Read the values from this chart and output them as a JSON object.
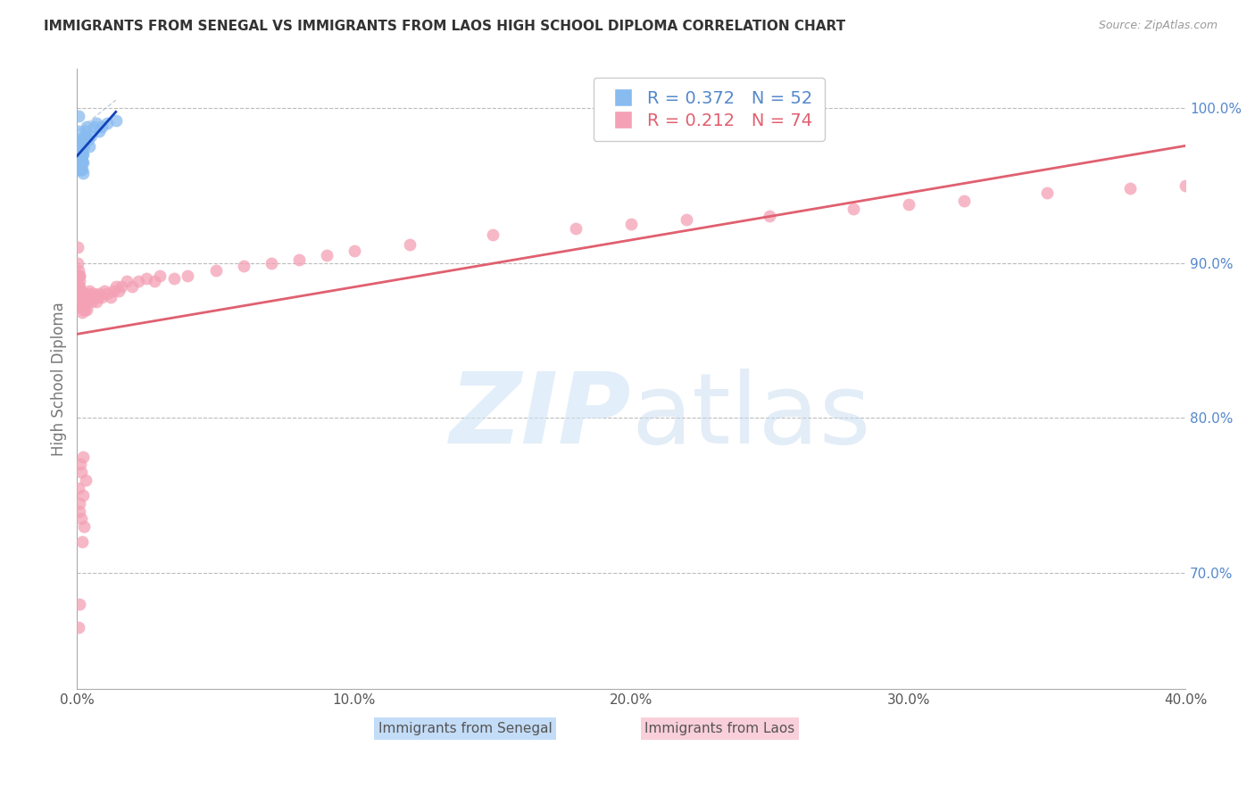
{
  "title": "IMMIGRANTS FROM SENEGAL VS IMMIGRANTS FROM LAOS HIGH SCHOOL DIPLOMA CORRELATION CHART",
  "source": "Source: ZipAtlas.com",
  "ylabel_left": "High School Diploma",
  "legend_senegal": "Immigrants from Senegal",
  "legend_laos": "Immigrants from Laos",
  "R_senegal": 0.372,
  "N_senegal": 52,
  "R_laos": 0.212,
  "N_laos": 74,
  "color_senegal": "#88BBF0",
  "color_laos": "#F4A0B5",
  "line_color_senegal": "#1144BB",
  "line_color_laos": "#E06070",
  "xlim": [
    0.0,
    0.4
  ],
  "ylim": [
    0.625,
    1.025
  ],
  "xticks": [
    0.0,
    0.1,
    0.2,
    0.3,
    0.4
  ],
  "yticks_right": [
    0.7,
    0.8,
    0.9,
    1.0
  ],
  "senegal_x": [
    0.0002,
    0.0004,
    0.0005,
    0.0005,
    0.0006,
    0.0006,
    0.0007,
    0.0007,
    0.0008,
    0.0008,
    0.0008,
    0.0009,
    0.0009,
    0.001,
    0.001,
    0.001,
    0.0011,
    0.0011,
    0.0012,
    0.0012,
    0.0013,
    0.0013,
    0.0013,
    0.0014,
    0.0014,
    0.0015,
    0.0015,
    0.0016,
    0.0016,
    0.0017,
    0.0017,
    0.0018,
    0.0018,
    0.0019,
    0.002,
    0.0021,
    0.0022,
    0.0023,
    0.0025,
    0.0027,
    0.003,
    0.0032,
    0.0035,
    0.004,
    0.0045,
    0.005,
    0.006,
    0.007,
    0.008,
    0.009,
    0.011,
    0.014
  ],
  "senegal_y": [
    0.98,
    0.975,
    0.968,
    0.985,
    0.978,
    0.972,
    0.995,
    0.975,
    0.97,
    0.965,
    0.96,
    0.97,
    0.965,
    0.968,
    0.975,
    0.96,
    0.97,
    0.965,
    0.972,
    0.968,
    0.975,
    0.972,
    0.965,
    0.968,
    0.975,
    0.965,
    0.96,
    0.968,
    0.975,
    0.97,
    0.965,
    0.96,
    0.975,
    0.97,
    0.965,
    0.958,
    0.97,
    0.978,
    0.975,
    0.98,
    0.985,
    0.982,
    0.988,
    0.98,
    0.975,
    0.982,
    0.988,
    0.99,
    0.985,
    0.988,
    0.99,
    0.992
  ],
  "laos_x": [
    0.0002,
    0.0003,
    0.0005,
    0.0006,
    0.0007,
    0.0008,
    0.0009,
    0.001,
    0.001,
    0.0011,
    0.0012,
    0.0013,
    0.0014,
    0.0015,
    0.0016,
    0.0017,
    0.0018,
    0.0019,
    0.002,
    0.0021,
    0.0022,
    0.0023,
    0.0024,
    0.0025,
    0.0026,
    0.0028,
    0.003,
    0.0032,
    0.0034,
    0.0036,
    0.0038,
    0.004,
    0.0045,
    0.005,
    0.0055,
    0.006,
    0.0065,
    0.007,
    0.0075,
    0.008,
    0.009,
    0.01,
    0.011,
    0.012,
    0.013,
    0.014,
    0.015,
    0.016,
    0.018,
    0.02,
    0.022,
    0.025,
    0.028,
    0.03,
    0.035,
    0.04,
    0.05,
    0.06,
    0.07,
    0.08,
    0.09,
    0.1,
    0.12,
    0.15,
    0.18,
    0.2,
    0.22,
    0.25,
    0.28,
    0.3,
    0.32,
    0.35,
    0.38,
    0.4
  ],
  "laos_y": [
    0.9,
    0.91,
    0.885,
    0.895,
    0.878,
    0.892,
    0.888,
    0.885,
    0.892,
    0.88,
    0.875,
    0.882,
    0.875,
    0.88,
    0.872,
    0.875,
    0.868,
    0.872,
    0.875,
    0.87,
    0.878,
    0.872,
    0.875,
    0.88,
    0.875,
    0.87,
    0.878,
    0.875,
    0.87,
    0.878,
    0.875,
    0.88,
    0.882,
    0.878,
    0.875,
    0.88,
    0.878,
    0.875,
    0.878,
    0.88,
    0.878,
    0.882,
    0.88,
    0.878,
    0.882,
    0.885,
    0.882,
    0.885,
    0.888,
    0.885,
    0.888,
    0.89,
    0.888,
    0.892,
    0.89,
    0.892,
    0.895,
    0.898,
    0.9,
    0.902,
    0.905,
    0.908,
    0.912,
    0.918,
    0.922,
    0.925,
    0.928,
    0.93,
    0.935,
    0.938,
    0.94,
    0.945,
    0.948,
    0.95
  ],
  "laos_x_extra": [
    0.0004,
    0.001,
    0.0018,
    0.0025,
    0.0008,
    0.0015,
    0.002,
    0.003,
    0.0012,
    0.0007,
    0.0009,
    0.0022,
    0.0014
  ],
  "laos_y_extra": [
    0.665,
    0.68,
    0.72,
    0.73,
    0.74,
    0.735,
    0.75,
    0.76,
    0.77,
    0.755,
    0.745,
    0.775,
    0.765
  ],
  "senegal_line_x": [
    0.0,
    0.014
  ],
  "laos_line_x": [
    0.0,
    0.4
  ]
}
